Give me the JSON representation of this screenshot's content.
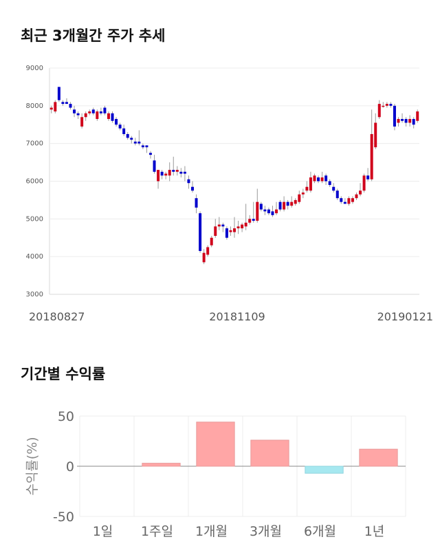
{
  "section1": {
    "title": "최근 3개월간 주가 추세"
  },
  "section2": {
    "title": "기간별 수익률"
  },
  "chart_data": [
    {
      "type": "candlestick",
      "title": "최근 3개월간 주가 추세",
      "ylim": [
        3000,
        9000
      ],
      "y_ticks": [
        "9000",
        "8000",
        "7000",
        "6000",
        "5000",
        "4000",
        "3000"
      ],
      "x_labels": [
        "20180827",
        "20181109",
        "20190121"
      ],
      "colors": {
        "up": "#d0021b",
        "down": "#0000cc",
        "wick": "#999999"
      },
      "candles": [
        {
          "o": 7900,
          "h": 8000,
          "l": 7800,
          "c": 7950
        },
        {
          "o": 7850,
          "h": 8150,
          "l": 7800,
          "c": 8100
        },
        {
          "o": 8500,
          "h": 8500,
          "l": 8100,
          "c": 8150
        },
        {
          "o": 8100,
          "h": 8150,
          "l": 8000,
          "c": 8050
        },
        {
          "o": 8100,
          "h": 8200,
          "l": 8050,
          "c": 8050
        },
        {
          "o": 8050,
          "h": 8100,
          "l": 7900,
          "c": 7950
        },
        {
          "o": 7900,
          "h": 8000,
          "l": 7700,
          "c": 7800
        },
        {
          "o": 7800,
          "h": 7850,
          "l": 7650,
          "c": 7750
        },
        {
          "o": 7450,
          "h": 7800,
          "l": 7400,
          "c": 7700
        },
        {
          "o": 7700,
          "h": 7850,
          "l": 7600,
          "c": 7800
        },
        {
          "o": 7800,
          "h": 7900,
          "l": 7750,
          "c": 7850
        },
        {
          "o": 7900,
          "h": 7950,
          "l": 7750,
          "c": 7800
        },
        {
          "o": 7650,
          "h": 7900,
          "l": 7600,
          "c": 7850
        },
        {
          "o": 7850,
          "h": 7950,
          "l": 7750,
          "c": 7800
        },
        {
          "o": 7950,
          "h": 8000,
          "l": 7750,
          "c": 7800
        },
        {
          "o": 7650,
          "h": 7850,
          "l": 7600,
          "c": 7800
        },
        {
          "o": 7800,
          "h": 7850,
          "l": 7550,
          "c": 7600
        },
        {
          "o": 7650,
          "h": 7700,
          "l": 7450,
          "c": 7500
        },
        {
          "o": 7500,
          "h": 7550,
          "l": 7350,
          "c": 7400
        },
        {
          "o": 7400,
          "h": 7500,
          "l": 7200,
          "c": 7250
        },
        {
          "o": 7250,
          "h": 7300,
          "l": 7100,
          "c": 7150
        },
        {
          "o": 7150,
          "h": 7200,
          "l": 7000,
          "c": 7100
        },
        {
          "o": 7050,
          "h": 7150,
          "l": 6950,
          "c": 7000
        },
        {
          "o": 7050,
          "h": 7350,
          "l": 6950,
          "c": 7000
        },
        {
          "o": 6950,
          "h": 7000,
          "l": 6850,
          "c": 6900
        },
        {
          "o": 6950,
          "h": 6950,
          "l": 6750,
          "c": 6900
        },
        {
          "o": 6750,
          "h": 6800,
          "l": 6600,
          "c": 6700
        },
        {
          "o": 6550,
          "h": 6700,
          "l": 6200,
          "c": 6250
        },
        {
          "o": 6000,
          "h": 6300,
          "l": 5800,
          "c": 6300
        },
        {
          "o": 6250,
          "h": 6300,
          "l": 6050,
          "c": 6150
        },
        {
          "o": 6150,
          "h": 6250,
          "l": 6050,
          "c": 6200
        },
        {
          "o": 6150,
          "h": 6500,
          "l": 6000,
          "c": 6300
        },
        {
          "o": 6300,
          "h": 6650,
          "l": 6150,
          "c": 6250
        },
        {
          "o": 6250,
          "h": 6400,
          "l": 6150,
          "c": 6300
        },
        {
          "o": 6250,
          "h": 6350,
          "l": 6100,
          "c": 6200
        },
        {
          "o": 6250,
          "h": 6400,
          "l": 6000,
          "c": 6200
        },
        {
          "o": 6050,
          "h": 6150,
          "l": 5800,
          "c": 5950
        },
        {
          "o": 5850,
          "h": 6000,
          "l": 5700,
          "c": 5750
        },
        {
          "o": 5550,
          "h": 5650,
          "l": 5150,
          "c": 5300
        },
        {
          "o": 5150,
          "h": 5200,
          "l": 4100,
          "c": 4150
        },
        {
          "o": 3850,
          "h": 4200,
          "l": 3800,
          "c": 4100
        },
        {
          "o": 4050,
          "h": 4300,
          "l": 4000,
          "c": 4250
        },
        {
          "o": 4300,
          "h": 4550,
          "l": 4250,
          "c": 4500
        },
        {
          "o": 4550,
          "h": 5000,
          "l": 4500,
          "c": 4800
        },
        {
          "o": 4800,
          "h": 5050,
          "l": 4700,
          "c": 4850
        },
        {
          "o": 4850,
          "h": 4900,
          "l": 4650,
          "c": 4800
        },
        {
          "o": 4750,
          "h": 4800,
          "l": 4450,
          "c": 4500
        },
        {
          "o": 4650,
          "h": 4800,
          "l": 4550,
          "c": 4700
        },
        {
          "o": 4650,
          "h": 5050,
          "l": 4500,
          "c": 4750
        },
        {
          "o": 4750,
          "h": 4950,
          "l": 4600,
          "c": 4800
        },
        {
          "o": 4750,
          "h": 4900,
          "l": 4650,
          "c": 4850
        },
        {
          "o": 4800,
          "h": 5400,
          "l": 4700,
          "c": 4900
        },
        {
          "o": 4900,
          "h": 5100,
          "l": 4850,
          "c": 5000
        },
        {
          "o": 5000,
          "h": 5450,
          "l": 4900,
          "c": 4950
        },
        {
          "o": 4950,
          "h": 5800,
          "l": 4900,
          "c": 5450
        },
        {
          "o": 5400,
          "h": 5450,
          "l": 5200,
          "c": 5250
        },
        {
          "o": 5250,
          "h": 5350,
          "l": 5100,
          "c": 5200
        },
        {
          "o": 5250,
          "h": 5300,
          "l": 5100,
          "c": 5150
        },
        {
          "o": 5200,
          "h": 5350,
          "l": 5050,
          "c": 5100
        },
        {
          "o": 5150,
          "h": 5450,
          "l": 5100,
          "c": 5250
        },
        {
          "o": 5450,
          "h": 5500,
          "l": 5200,
          "c": 5250
        },
        {
          "o": 5250,
          "h": 5600,
          "l": 5200,
          "c": 5450
        },
        {
          "o": 5450,
          "h": 5500,
          "l": 5250,
          "c": 5350
        },
        {
          "o": 5350,
          "h": 5600,
          "l": 5300,
          "c": 5450
        },
        {
          "o": 5400,
          "h": 5550,
          "l": 5350,
          "c": 5500
        },
        {
          "o": 5450,
          "h": 5750,
          "l": 5400,
          "c": 5650
        },
        {
          "o": 5650,
          "h": 5800,
          "l": 5550,
          "c": 5700
        },
        {
          "o": 5750,
          "h": 6000,
          "l": 5700,
          "c": 5850
        },
        {
          "o": 5750,
          "h": 6250,
          "l": 5700,
          "c": 6100
        },
        {
          "o": 6000,
          "h": 6200,
          "l": 5950,
          "c": 6150
        },
        {
          "o": 6100,
          "h": 6150,
          "l": 5950,
          "c": 6000
        },
        {
          "o": 6000,
          "h": 6250,
          "l": 5950,
          "c": 6100
        },
        {
          "o": 6150,
          "h": 6200,
          "l": 5900,
          "c": 6000
        },
        {
          "o": 6000,
          "h": 6050,
          "l": 5850,
          "c": 5900
        },
        {
          "o": 5850,
          "h": 5950,
          "l": 5700,
          "c": 5750
        },
        {
          "o": 5750,
          "h": 5800,
          "l": 5500,
          "c": 5550
        },
        {
          "o": 5550,
          "h": 5600,
          "l": 5400,
          "c": 5450
        },
        {
          "o": 5450,
          "h": 5550,
          "l": 5400,
          "c": 5400
        },
        {
          "o": 5400,
          "h": 5600,
          "l": 5350,
          "c": 5550
        },
        {
          "o": 5450,
          "h": 5600,
          "l": 5400,
          "c": 5550
        },
        {
          "o": 5550,
          "h": 5700,
          "l": 5500,
          "c": 5650
        },
        {
          "o": 5650,
          "h": 5950,
          "l": 5600,
          "c": 5750
        },
        {
          "o": 5750,
          "h": 6200,
          "l": 5700,
          "c": 6150
        },
        {
          "o": 6150,
          "h": 6350,
          "l": 6000,
          "c": 6050
        },
        {
          "o": 6050,
          "h": 7900,
          "l": 6000,
          "c": 7250
        },
        {
          "o": 6900,
          "h": 7800,
          "l": 6850,
          "c": 7550
        },
        {
          "o": 7700,
          "h": 8150,
          "l": 7650,
          "c": 8050
        },
        {
          "o": 8000,
          "h": 8100,
          "l": 7950,
          "c": 8000
        },
        {
          "o": 8000,
          "h": 8100,
          "l": 7950,
          "c": 8050
        },
        {
          "o": 8050,
          "h": 8100,
          "l": 7950,
          "c": 8000
        },
        {
          "o": 8000,
          "h": 8050,
          "l": 7350,
          "c": 7450
        },
        {
          "o": 7550,
          "h": 7700,
          "l": 7450,
          "c": 7650
        },
        {
          "o": 7650,
          "h": 7800,
          "l": 7550,
          "c": 7600
        },
        {
          "o": 7650,
          "h": 7700,
          "l": 7450,
          "c": 7550
        },
        {
          "o": 7550,
          "h": 7750,
          "l": 7450,
          "c": 7650
        },
        {
          "o": 7650,
          "h": 7700,
          "l": 7400,
          "c": 7500
        },
        {
          "o": 7600,
          "h": 7900,
          "l": 7550,
          "c": 7850
        }
      ]
    },
    {
      "type": "bar",
      "title": "기간별 수익률",
      "ylabel": "수익률(%)",
      "ylim": [
        -50,
        50
      ],
      "y_ticks": [
        "50",
        "0",
        "-50"
      ],
      "categories": [
        "1일",
        "1주일",
        "1개월",
        "3개월",
        "6개월",
        "1년"
      ],
      "values": [
        0,
        3,
        44,
        26,
        -7,
        17
      ],
      "colors": {
        "positive": "#ffa6a6",
        "negative": "#a6e8f0"
      }
    }
  ]
}
